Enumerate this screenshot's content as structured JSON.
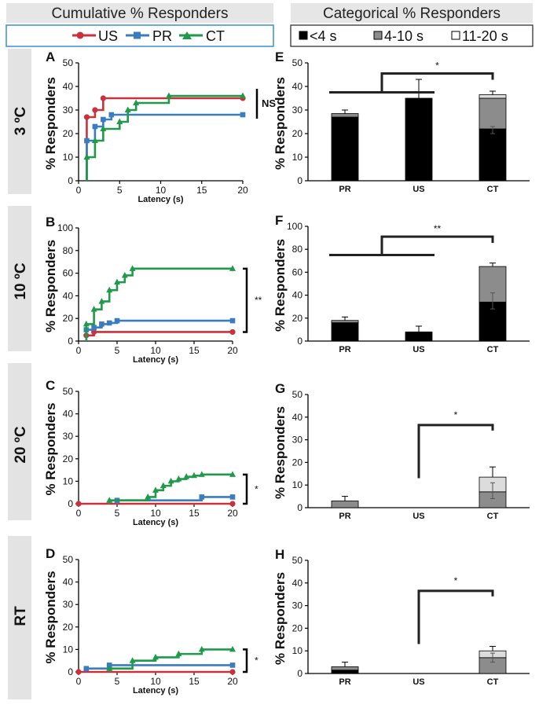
{
  "header": {
    "left_title": "Cumulative % Responders",
    "right_title": "Categorical % Responders"
  },
  "legend_left": [
    {
      "name": "US",
      "color": "#c8323c",
      "marker": "circle"
    },
    {
      "name": "PR",
      "color": "#3a7cc0",
      "marker": "square"
    },
    {
      "name": "CT",
      "color": "#1f9a4a",
      "marker": "triangle"
    }
  ],
  "legend_right": [
    {
      "name": "<4 s",
      "color": "#000000"
    },
    {
      "name": "4-10 s",
      "color": "#8c8c8c"
    },
    {
      "name": "11-20 s",
      "color": "#ffffff"
    }
  ],
  "rows": [
    "3 ºC",
    "10 ºC",
    "20 ºC",
    "RT"
  ],
  "common": {
    "ylabel": "% Responders",
    "xlabel": "Latency (s)",
    "categories": [
      "PR",
      "US",
      "CT"
    ]
  },
  "chart_data": [
    {
      "panel": "A",
      "type": "line",
      "xlabel": "Latency (s)",
      "ylabel": "% Responders",
      "xlim": [
        0,
        20
      ],
      "ylim": [
        0,
        50
      ],
      "xticks": [
        "0",
        "5",
        "10",
        "15",
        "20"
      ],
      "yticks": [
        "0",
        "10",
        "20",
        "30",
        "40",
        "50"
      ],
      "annotation": "NS",
      "annotation_bold": true,
      "series": [
        {
          "name": "US",
          "x": [
            1,
            2,
            3,
            20
          ],
          "y": [
            27,
            30,
            35,
            35
          ]
        },
        {
          "name": "PR",
          "x": [
            1,
            2,
            3,
            4,
            20
          ],
          "y": [
            17,
            23,
            26,
            28,
            28
          ]
        },
        {
          "name": "CT",
          "x": [
            1,
            2,
            3,
            5,
            6,
            7,
            11,
            20
          ],
          "y": [
            10,
            17,
            22,
            25,
            30,
            33,
            36,
            36
          ]
        }
      ]
    },
    {
      "panel": "B",
      "type": "line",
      "xlabel": "Latency (s)",
      "ylabel": "% Responders",
      "xlim": [
        0,
        20
      ],
      "ylim": [
        0,
        100
      ],
      "xticks": [
        "0",
        "5",
        "10",
        "15",
        "20"
      ],
      "yticks": [
        "0",
        "20",
        "40",
        "60",
        "80",
        "100"
      ],
      "annotation": "**",
      "annotation_bold": false,
      "series": [
        {
          "name": "US",
          "x": [
            1,
            2,
            20
          ],
          "y": [
            5,
            8,
            8
          ]
        },
        {
          "name": "PR",
          "x": [
            1,
            2,
            3,
            4,
            5,
            20
          ],
          "y": [
            10,
            12,
            15,
            16,
            18,
            18
          ]
        },
        {
          "name": "CT",
          "x": [
            1,
            2,
            3,
            4,
            5,
            6,
            7,
            20
          ],
          "y": [
            15,
            28,
            35,
            45,
            52,
            58,
            64,
            64
          ]
        }
      ]
    },
    {
      "panel": "C",
      "type": "line",
      "xlabel": "Latency (s)",
      "ylabel": "% Responders",
      "xlim": [
        0,
        20
      ],
      "ylim": [
        0,
        50
      ],
      "xticks": [
        "0",
        "5",
        "10",
        "15",
        "20"
      ],
      "yticks": [
        "0",
        "10",
        "20",
        "30",
        "40",
        "50"
      ],
      "annotation": "*",
      "annotation_bold": false,
      "series": [
        {
          "name": "US",
          "x": [
            0,
            20
          ],
          "y": [
            0,
            0
          ]
        },
        {
          "name": "PR",
          "x": [
            5,
            16,
            20
          ],
          "y": [
            1.5,
            3,
            3
          ]
        },
        {
          "name": "CT",
          "x": [
            4,
            9,
            10,
            11,
            12,
            13,
            14,
            15,
            16,
            20
          ],
          "y": [
            1.5,
            3,
            6,
            8,
            10,
            11,
            12,
            12.5,
            13,
            13
          ]
        }
      ]
    },
    {
      "panel": "D",
      "type": "line",
      "xlabel": "Latency (s)",
      "ylabel": "% Responders",
      "xlim": [
        0,
        20
      ],
      "ylim": [
        0,
        50
      ],
      "xticks": [
        "0",
        "5",
        "10",
        "15",
        "20"
      ],
      "yticks": [
        "0",
        "10",
        "20",
        "30",
        "40",
        "50"
      ],
      "annotation": "*",
      "annotation_bold": false,
      "series": [
        {
          "name": "US",
          "x": [
            0,
            20
          ],
          "y": [
            0,
            0
          ]
        },
        {
          "name": "PR",
          "x": [
            1,
            4,
            20
          ],
          "y": [
            1.5,
            3,
            3
          ]
        },
        {
          "name": "CT",
          "x": [
            4,
            7,
            10,
            13,
            16,
            20
          ],
          "y": [
            1.5,
            5,
            6.5,
            8,
            10,
            10
          ]
        }
      ]
    },
    {
      "panel": "E",
      "type": "bar",
      "stacked": true,
      "ylabel": "% Responders",
      "categories": [
        "PR",
        "US",
        "CT"
      ],
      "ylim": [
        0,
        50
      ],
      "yticks": [
        "0",
        "10",
        "20",
        "30",
        "40",
        "50"
      ],
      "series": [
        {
          "name": "<4 s",
          "values": [
            27,
            35,
            22
          ]
        },
        {
          "name": "4-10 s",
          "values": [
            1.5,
            0,
            13
          ]
        },
        {
          "name": "11-20 s",
          "values": [
            0,
            0,
            1.5
          ]
        }
      ],
      "error_tops": [
        30,
        43,
        38
      ],
      "inner_error": [
        null,
        null,
        [
          20,
          23
        ]
      ],
      "significance": "*",
      "sig_bracket": {
        "left": [
          0,
          1
        ],
        "right": [
          2
        ]
      }
    },
    {
      "panel": "F",
      "type": "bar",
      "stacked": true,
      "ylabel": "% Responders",
      "categories": [
        "PR",
        "US",
        "CT"
      ],
      "ylim": [
        0,
        100
      ],
      "yticks": [
        "0",
        "20",
        "40",
        "60",
        "80",
        "100"
      ],
      "series": [
        {
          "name": "<4 s",
          "values": [
            16,
            8,
            34
          ]
        },
        {
          "name": "4-10 s",
          "values": [
            2,
            0,
            31
          ]
        },
        {
          "name": "11-20 s",
          "values": [
            0,
            0,
            0
          ]
        }
      ],
      "error_tops": [
        21,
        13,
        68
      ],
      "inner_error": [
        null,
        null,
        [
          28,
          42
        ]
      ],
      "significance": "**",
      "sig_bracket": {
        "left": [
          0,
          1
        ],
        "right": [
          2
        ]
      }
    },
    {
      "panel": "G",
      "type": "bar",
      "stacked": true,
      "ylabel": "% Responders",
      "categories": [
        "PR",
        "US",
        "CT"
      ],
      "ylim": [
        0,
        50
      ],
      "yticks": [
        "0",
        "10",
        "20",
        "30",
        "40",
        "50"
      ],
      "series": [
        {
          "name": "<4 s",
          "values": [
            0,
            0,
            0
          ]
        },
        {
          "name": "4-10 s",
          "values": [
            3,
            0,
            7
          ]
        },
        {
          "name": "11-20 s",
          "values": [
            0,
            0,
            6.5
          ]
        }
      ],
      "error_tops": [
        5,
        null,
        18
      ],
      "inner_error": [
        null,
        null,
        [
          4,
          11
        ]
      ],
      "significance": "*",
      "sig_bracket": {
        "left": [
          1
        ],
        "right": [
          2
        ]
      }
    },
    {
      "panel": "H",
      "type": "bar",
      "stacked": true,
      "ylabel": "% Responders",
      "categories": [
        "PR",
        "US",
        "CT"
      ],
      "ylim": [
        0,
        50
      ],
      "yticks": [
        "0",
        "10",
        "20",
        "30",
        "40",
        "50"
      ],
      "series": [
        {
          "name": "<4 s",
          "values": [
            1.5,
            0,
            0
          ]
        },
        {
          "name": "4-10 s",
          "values": [
            1.5,
            0,
            7
          ]
        },
        {
          "name": "11-20 s",
          "values": [
            0,
            0,
            3
          ]
        }
      ],
      "error_tops": [
        5,
        null,
        12
      ],
      "inner_error": [
        null,
        null,
        [
          5,
          9
        ]
      ],
      "significance": "*",
      "sig_bracket": {
        "left": [
          1
        ],
        "right": [
          2
        ]
      }
    }
  ]
}
